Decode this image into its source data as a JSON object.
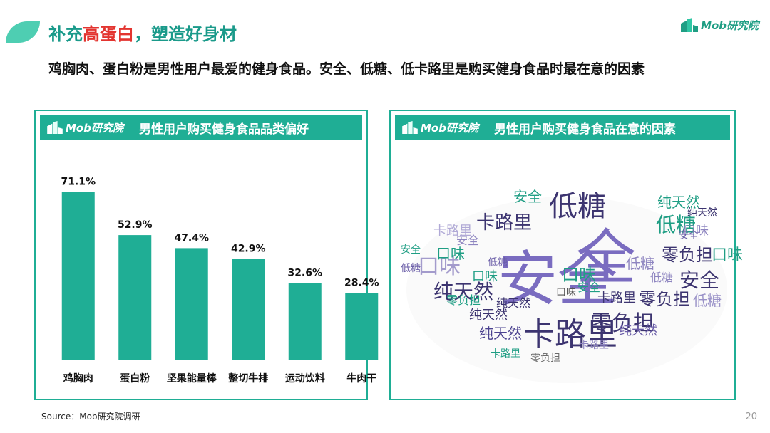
{
  "header": {
    "title_pre": "补充",
    "title_highlight": "高蛋白",
    "title_post": "，塑造好身材",
    "subtitle": "鸡胸肉、蛋白粉是男性用户最爱的健身食品。安全、低糖、低卡路里是购买健身食品时最在意的因素",
    "brand": "Mob研究院"
  },
  "left_panel": {
    "logo": "Mob研究院",
    "title": "男性用户购买健身食品品类偏好"
  },
  "right_panel": {
    "logo": "Mob研究院",
    "title": "男性用户购买健身食品在意的因素"
  },
  "chart_data": {
    "type": "bar",
    "categories": [
      "鸡胸肉",
      "蛋白粉",
      "坚果能量棒",
      "整切牛排",
      "运动饮料",
      "牛肉干"
    ],
    "values": [
      71.1,
      52.9,
      47.4,
      42.9,
      32.6,
      28.4
    ],
    "value_labels": [
      "71.1%",
      "52.9%",
      "47.4%",
      "42.9%",
      "32.6%",
      "28.4%"
    ],
    "ylim": [
      0,
      80
    ],
    "bar_color": "#1fae95",
    "grid": false,
    "legend": "none"
  },
  "word_cloud": {
    "words": [
      "安全",
      "全",
      "低糖",
      "卡路里",
      "口味",
      "纯天然",
      "零负担",
      "安全",
      "低糖",
      "口味",
      "纯天然",
      "卡路里",
      "安全",
      "口味",
      "低糖",
      "纯天然",
      "卡路里",
      "零负担",
      "低糖",
      "口味",
      "安全",
      "纯天然",
      "零负担",
      "口味",
      "低糖",
      "安全",
      "卡路里",
      "纯天然",
      "零负担",
      "口味",
      "安全",
      "低糖",
      "卡路里",
      "纯天然",
      "零负担",
      "口味",
      "安全",
      "低糖",
      "卡路里",
      "纯天然"
    ]
  },
  "footer": {
    "source": "Source：Mob研究院调研",
    "page_number": "20"
  },
  "colors": {
    "accent": "#1fae95",
    "title": "#1a9a8a",
    "highlight": "#e3342f"
  }
}
